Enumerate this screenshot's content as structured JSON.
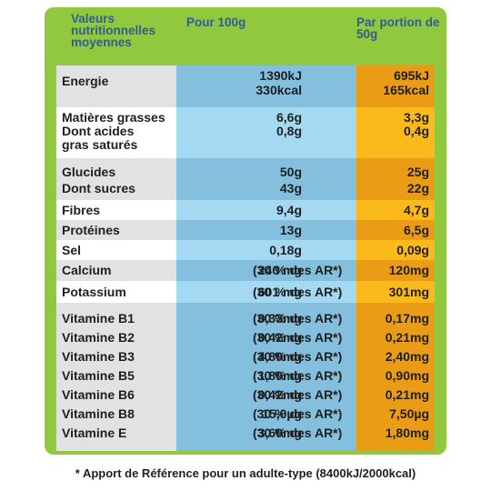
{
  "header": {
    "label_col": "Valeurs nutritionnelles moyennes",
    "per100_col": "Pour 100g",
    "portion_col": "Par portion de 50g"
  },
  "rows": [
    {
      "label": "Energie",
      "v100": "1390kJ",
      "vp": "695kJ"
    },
    {
      "label": "",
      "v100": "330kcal",
      "vp": "165kcal"
    },
    {
      "label": "Matières grasses",
      "v100": "6,6g",
      "vp": "3,3g"
    },
    {
      "label": "Dont acides",
      "v100": "0,8g",
      "vp": "0,4g"
    },
    {
      "label": "gras saturés",
      "v100": "",
      "vp": ""
    },
    {
      "label": "Glucides",
      "v100": "50g",
      "vp": "25g"
    },
    {
      "label": "Dont sucres",
      "v100": "43g",
      "vp": "22g"
    },
    {
      "label": "Fibres",
      "v100": "9,4g",
      "vp": "4,7g"
    },
    {
      "label": "Protéines",
      "v100": "13g",
      "vp": "6,5g"
    },
    {
      "label": "Sel",
      "v100": "0,18g",
      "vp": "0,09g"
    },
    {
      "label": "Calcium",
      "v100": "240 mg",
      "ar": "(30 % des AR*)",
      "vp": "120mg"
    },
    {
      "label": "Potassium",
      "v100": "601 mg",
      "ar": "(30 % des AR*)",
      "vp": "301mg"
    },
    {
      "label": "Vitamine B1",
      "v100": "0,33mg",
      "ar": "(30 % des AR*)",
      "vp": "0,17mg"
    },
    {
      "label": "Vitamine B2",
      "v100": "0,42mg",
      "ar": "(30 % des AR*)",
      "vp": "0,21mg"
    },
    {
      "label": "Vitamine B3",
      "v100": "4,80mg",
      "ar": "(30 % des AR*)",
      "vp": "2,40mg"
    },
    {
      "label": "Vitamine B5",
      "v100": "1,80mg",
      "ar": "(30 % des AR*)",
      "vp": "0,90mg"
    },
    {
      "label": "Vitamine B6",
      "v100": "0,42mg",
      "ar": "(30 % des AR*)",
      "vp": "0,21mg"
    },
    {
      "label": "Vitamine B8",
      "v100": "15,0µg",
      "ar": "(30 % des AR*)",
      "vp": "7,50µg"
    },
    {
      "label": "Vitamine E",
      "v100": "3,60mg",
      "ar": "(30 % des AR*)",
      "vp": "1,80mg"
    }
  ],
  "footnote": "* Apport de Référence pour un adulte-type (8400kJ/2000kcal)"
}
